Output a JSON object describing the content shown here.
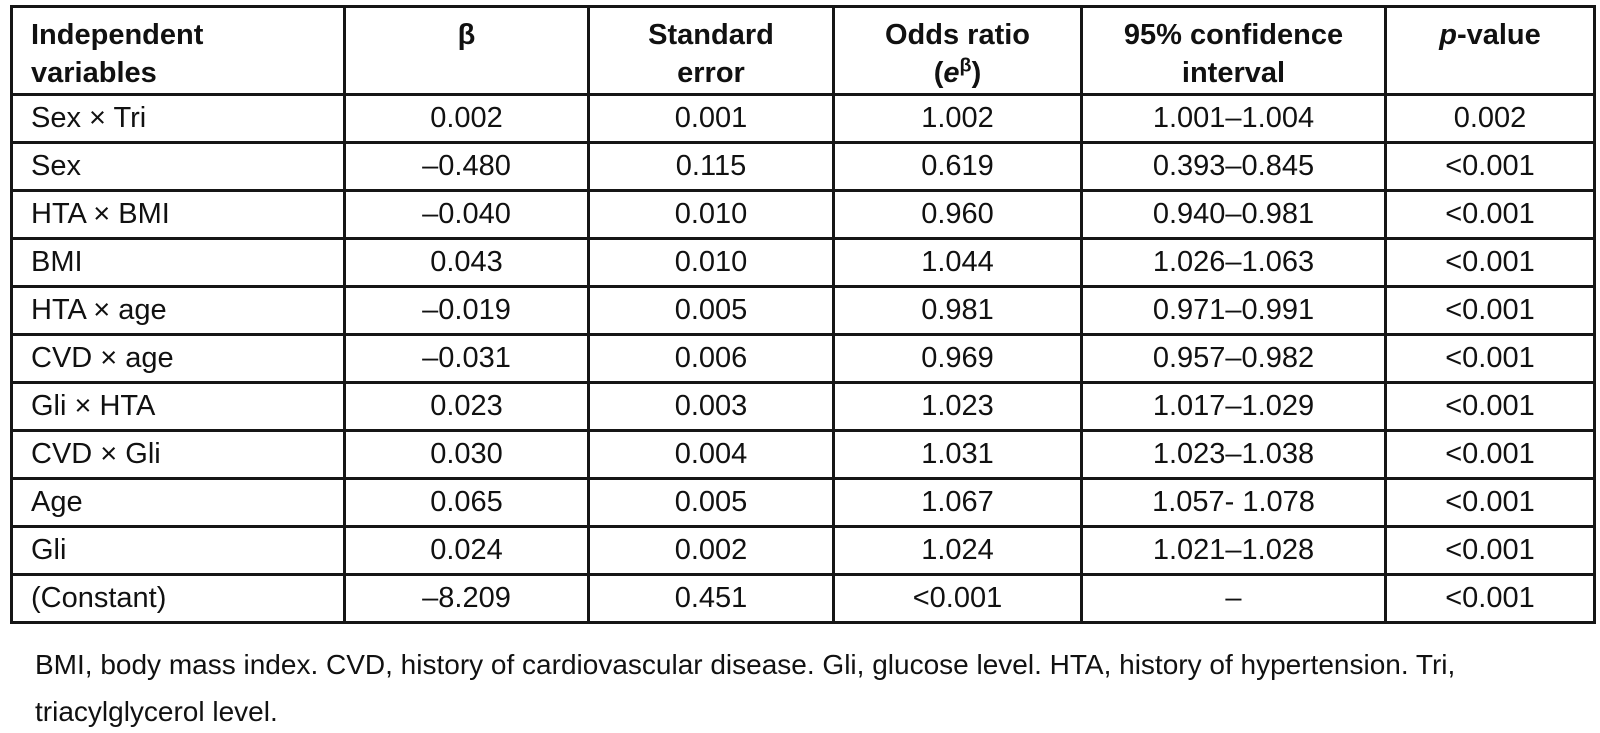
{
  "table": {
    "header": {
      "variables": "Independent\nvariables",
      "beta": "β",
      "std_error": "Standard\nerror",
      "odds_ratio": {
        "line1": "Odds ratio",
        "open": "(",
        "e": "e",
        "sup": "β",
        "close": ")"
      },
      "ci": "95% confidence\ninterval",
      "p_value": {
        "p": "p",
        "rest": "-value"
      }
    },
    "rows": [
      [
        "Sex × Tri",
        "0.002",
        "0.001",
        "1.002",
        "1.001–1.004",
        "0.002"
      ],
      [
        "Sex",
        "–0.480",
        "0.115",
        "0.619",
        "0.393–0.845",
        "<0.001"
      ],
      [
        "HTA × BMI",
        "–0.040",
        "0.010",
        "0.960",
        "0.940–0.981",
        "<0.001"
      ],
      [
        "BMI",
        "0.043",
        "0.010",
        "1.044",
        "1.026–1.063",
        "<0.001"
      ],
      [
        "HTA × age",
        "–0.019",
        "0.005",
        "0.981",
        "0.971–0.991",
        "<0.001"
      ],
      [
        "CVD × age",
        "–0.031",
        "0.006",
        "0.969",
        "0.957–0.982",
        "<0.001"
      ],
      [
        "Gli × HTA",
        "0.023",
        "0.003",
        "1.023",
        "1.017–1.029",
        "<0.001"
      ],
      [
        "CVD × Gli",
        "0.030",
        "0.004",
        "1.031",
        "1.023–1.038",
        "<0.001"
      ],
      [
        "Age",
        "0.065",
        "0.005",
        "1.067",
        "1.057- 1.078",
        "<0.001"
      ],
      [
        "Gli",
        "0.024",
        "0.002",
        "1.024",
        "1.021–1.028",
        "<0.001"
      ],
      [
        "(Constant)",
        "–8.209",
        "0.451",
        "<0.001",
        "–",
        "<0.001"
      ]
    ],
    "footnote": "BMI, body mass index. CVD, history of cardiovascular disease. Gli, glucose level. HTA, history of hypertension. Tri, triacylglycerol level."
  }
}
